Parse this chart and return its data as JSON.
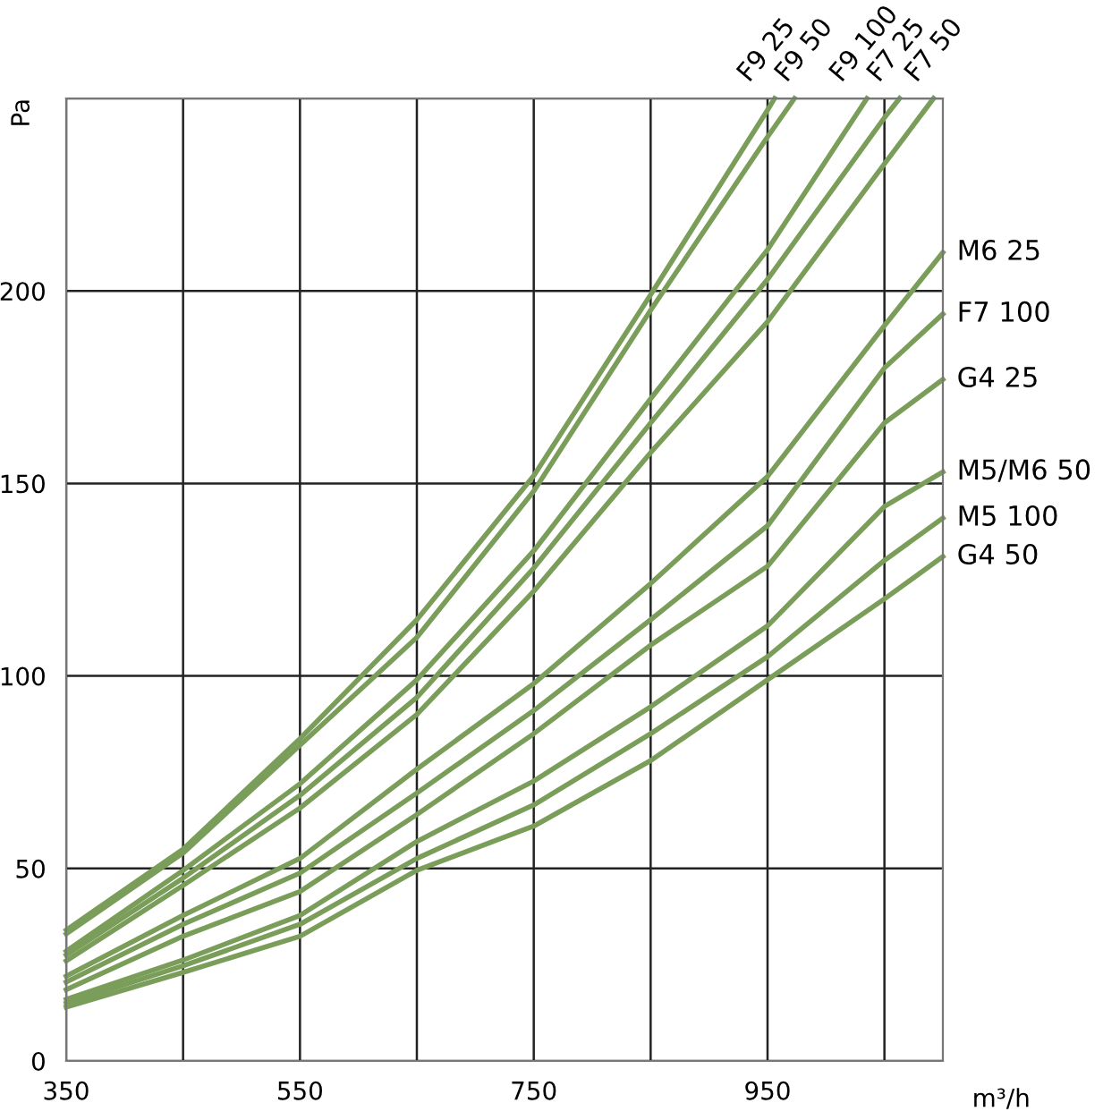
{
  "chart_data": {
    "type": "line",
    "xlabel": "m³/h",
    "ylabel": "Pa",
    "xlim": [
      350,
      1100
    ],
    "ylim": [
      0,
      250
    ],
    "xticks": [
      350,
      {
        "value": 450,
        "label": null
      },
      550,
      {
        "value": 650,
        "label": null
      },
      750,
      {
        "value": 850,
        "label": null
      },
      950,
      {
        "value": 1050,
        "label": null
      }
    ],
    "yticks": [
      0,
      50,
      100,
      150,
      200,
      {
        "value": 250,
        "label": null
      }
    ],
    "grid": true,
    "legend": false,
    "marker": "none",
    "line_style": "solid",
    "series": [
      {
        "name": "F9 25",
        "color": "#7a9e5a",
        "x": [
          350,
          450,
          550,
          650,
          750,
          850,
          950,
          956
        ],
        "values": [
          34,
          55,
          83.7,
          114.6,
          152,
          199,
          247,
          250
        ]
      },
      {
        "name": "F9 50",
        "color": "#7a9e5a",
        "x": [
          350,
          450,
          550,
          650,
          750,
          850,
          950,
          973
        ],
        "values": [
          33,
          54,
          82,
          110,
          148,
          195,
          240,
          250
        ]
      },
      {
        "name": "F9 100",
        "color": "#7a9e5a",
        "x": [
          350,
          450,
          550,
          650,
          750,
          850,
          950,
          1035
        ],
        "values": [
          28.5,
          49.5,
          72,
          99,
          132.5,
          172,
          210.7,
          250
        ]
      },
      {
        "name": "F7 25",
        "color": "#7a9e5a",
        "x": [
          350,
          450,
          550,
          650,
          750,
          850,
          950,
          1050,
          1063
        ],
        "values": [
          27.5,
          47.5,
          69,
          94.4,
          128,
          165.7,
          203,
          245,
          250
        ]
      },
      {
        "name": "F7 50",
        "color": "#7a9e5a",
        "x": [
          350,
          450,
          550,
          650,
          750,
          850,
          950,
          1050,
          1092
        ],
        "values": [
          26,
          45.6,
          65.7,
          90,
          122,
          158,
          192,
          233,
          250
        ]
      },
      {
        "name": "M6 25",
        "color": "#7a9e5a",
        "x": [
          350,
          450,
          550,
          650,
          750,
          850,
          950,
          1050,
          1100
        ],
        "values": [
          22,
          37.8,
          52.6,
          75.8,
          98,
          124,
          151.8,
          191,
          210
        ]
      },
      {
        "name": "F7 100",
        "color": "#7a9e5a",
        "x": [
          350,
          450,
          550,
          650,
          750,
          850,
          950,
          1050,
          1100
        ],
        "values": [
          20.5,
          35.5,
          48.8,
          69.6,
          91,
          114.6,
          139,
          180,
          194
        ]
      },
      {
        "name": "G4 25",
        "color": "#7a9e5a",
        "x": [
          350,
          450,
          550,
          650,
          750,
          850,
          950,
          1050,
          1100
        ],
        "values": [
          18.5,
          32.4,
          44,
          64,
          85,
          108,
          128.5,
          165.7,
          177
        ]
      },
      {
        "name": "M5/M6 50",
        "color": "#7a9e5a",
        "x": [
          350,
          450,
          550,
          650,
          750,
          850,
          950,
          1050,
          1100
        ],
        "values": [
          16,
          26.2,
          37.8,
          57,
          72.7,
          92,
          113,
          144,
          153
        ]
      },
      {
        "name": "M5 100",
        "color": "#7a9e5a",
        "x": [
          350,
          450,
          550,
          650,
          750,
          850,
          950,
          1050,
          1100
        ],
        "values": [
          15,
          24.7,
          35.5,
          52.6,
          66.5,
          85,
          105,
          130,
          141
        ]
      },
      {
        "name": "G4 50",
        "color": "#7a9e5a",
        "x": [
          350,
          450,
          550,
          650,
          750,
          850,
          950,
          1050,
          1100
        ],
        "values": [
          14,
          23,
          32.4,
          49.5,
          61,
          78,
          99,
          120,
          131
        ]
      }
    ]
  }
}
